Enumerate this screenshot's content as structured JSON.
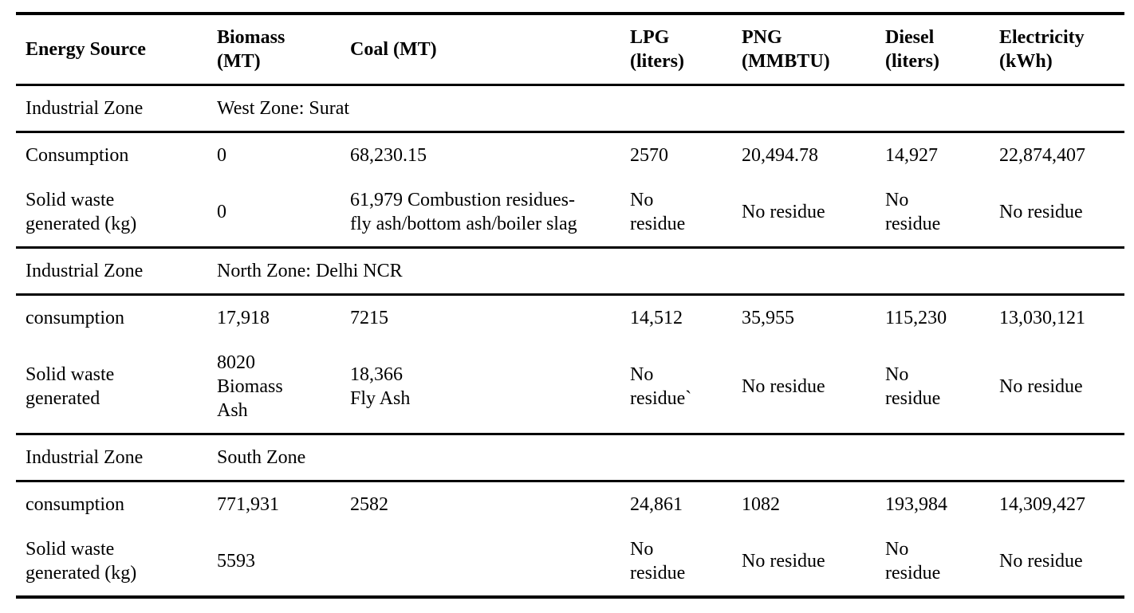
{
  "page": {
    "background_color": "#ffffff",
    "text_color": "#000000",
    "rule_color": "#000000"
  },
  "table": {
    "columns": [
      {
        "label": "Energy Source"
      },
      {
        "label": "Biomass\n(MT)"
      },
      {
        "label": "Coal (MT)"
      },
      {
        "label": "LPG\n(liters)"
      },
      {
        "label": "PNG\n(MMBTU)"
      },
      {
        "label": "Diesel\n(liters)"
      },
      {
        "label": "Electricity\n(kWh)"
      }
    ],
    "sections": [
      {
        "zone_label": "Industrial Zone",
        "zone_value": "West Zone: Surat",
        "rows": [
          {
            "label": "Consumption",
            "cells": [
              "0",
              "68,230.15",
              "2570",
              "20,494.78",
              "14,927",
              "22,874,407"
            ]
          },
          {
            "label": "Solid waste\ngenerated (kg)",
            "cells": [
              "0",
              "61,979 Combustion residues-\nfly ash/bottom ash/boiler slag",
              "No\nresidue",
              "No residue",
              "No\nresidue",
              "No residue"
            ]
          }
        ]
      },
      {
        "zone_label": "Industrial Zone",
        "zone_value": "North Zone: Delhi NCR",
        "rows": [
          {
            "label": "consumption",
            "cells": [
              "17,918",
              "7215",
              "14,512",
              "35,955",
              "115,230",
              "13,030,121"
            ]
          },
          {
            "label": "Solid waste\ngenerated",
            "cells": [
              "8020\nBiomass\nAsh",
              "18,366\nFly Ash",
              "No\nresidue`",
              "No residue",
              "No\nresidue",
              "No residue"
            ]
          }
        ]
      },
      {
        "zone_label": "Industrial Zone",
        "zone_value": "South Zone",
        "rows": [
          {
            "label": "consumption",
            "cells": [
              "771,931",
              "2582",
              "24,861",
              "1082",
              "193,984",
              "14,309,427"
            ]
          },
          {
            "label": "Solid waste\ngenerated (kg)",
            "cells": [
              "5593",
              "",
              "No\nresidue",
              "No residue",
              "No\nresidue",
              "No residue"
            ]
          }
        ]
      }
    ]
  }
}
